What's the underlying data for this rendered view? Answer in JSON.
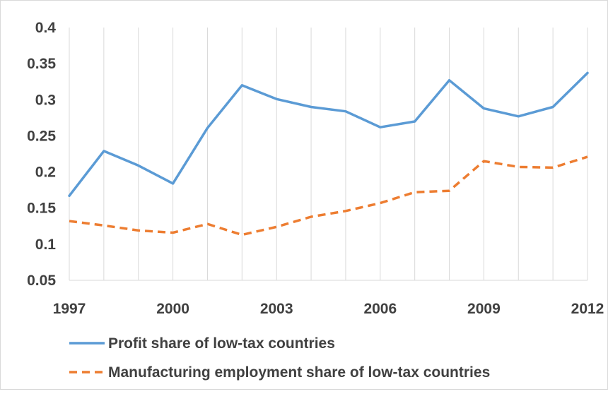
{
  "chart_data": {
    "type": "line",
    "x": [
      1997,
      1998,
      1999,
      2000,
      2001,
      2002,
      2003,
      2004,
      2005,
      2006,
      2007,
      2008,
      2009,
      2010,
      2011,
      2012
    ],
    "xticks": [
      "1997",
      "2000",
      "2003",
      "2006",
      "2009",
      "2012"
    ],
    "yticks": [
      "0.05",
      "0.1",
      "0.15",
      "0.2",
      "0.25",
      "0.3",
      "0.35",
      "0.4"
    ],
    "ylim": [
      0.05,
      0.4
    ],
    "xlim": [
      1997,
      2012
    ],
    "grid": "vertical",
    "legend_position": "bottom",
    "series": [
      {
        "name": "Profit share of low-tax countries",
        "color": "#5b9bd5",
        "style": "solid",
        "values": [
          0.167,
          0.229,
          0.209,
          0.184,
          0.261,
          0.32,
          0.301,
          0.29,
          0.284,
          0.262,
          0.27,
          0.327,
          0.288,
          0.277,
          0.29,
          0.337
        ]
      },
      {
        "name": "Manufacturing employment share of low-tax countries",
        "color": "#ed7d31",
        "style": "dashed",
        "values": [
          0.132,
          0.126,
          0.119,
          0.116,
          0.128,
          0.113,
          0.124,
          0.138,
          0.146,
          0.157,
          0.172,
          0.174,
          0.215,
          0.207,
          0.206,
          0.221
        ]
      }
    ]
  }
}
